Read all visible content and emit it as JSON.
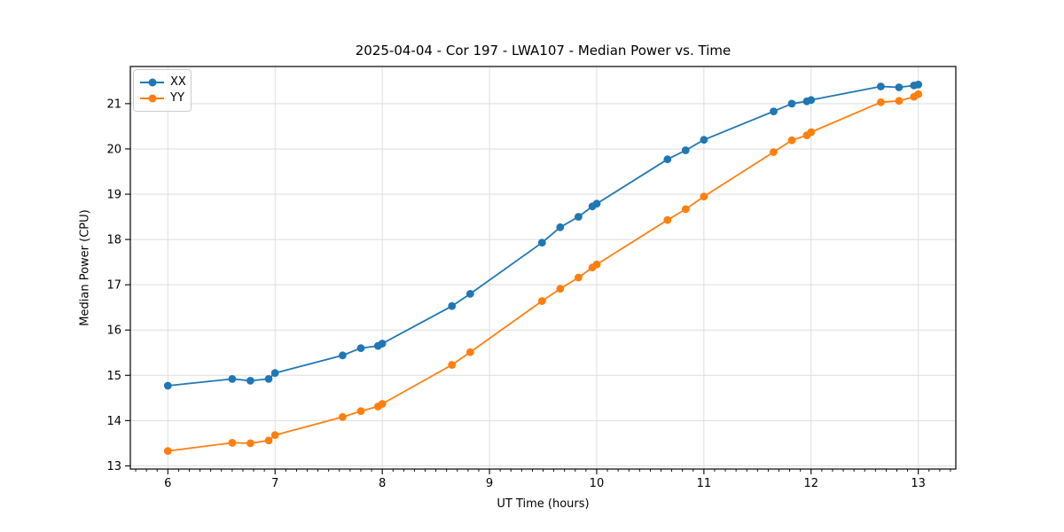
{
  "chart_data": {
    "type": "line",
    "title": "2025-04-04 - Cor 197 - LWA107 - Median Power vs. Time",
    "xlabel": "UT Time (hours)",
    "ylabel": "Median Power (CPU)",
    "xlim": [
      5.65,
      13.35
    ],
    "ylim": [
      12.93,
      21.82
    ],
    "x_ticks": [
      6,
      7,
      8,
      9,
      10,
      11,
      12,
      13
    ],
    "y_ticks": [
      13,
      14,
      15,
      16,
      17,
      18,
      19,
      20,
      21
    ],
    "x_minor_step": 0.1,
    "grid": true,
    "grid_color": "#dddddd",
    "spine_color": "#000000",
    "legend_position": "upper-left",
    "series": [
      {
        "name": "XX",
        "color": "#1f77b4",
        "points": [
          [
            6.0,
            14.77
          ],
          [
            6.6,
            14.92
          ],
          [
            6.77,
            14.88
          ],
          [
            6.94,
            14.92
          ],
          [
            7.0,
            15.05
          ],
          [
            7.63,
            15.44
          ],
          [
            7.8,
            15.6
          ],
          [
            7.96,
            15.65
          ],
          [
            8.0,
            15.7
          ],
          [
            8.65,
            16.53
          ],
          [
            8.82,
            16.8
          ],
          [
            9.49,
            17.93
          ],
          [
            9.66,
            18.27
          ],
          [
            9.83,
            18.5
          ],
          [
            9.96,
            18.73
          ],
          [
            10.0,
            18.79
          ],
          [
            10.66,
            19.77
          ],
          [
            10.83,
            19.97
          ],
          [
            11.0,
            20.2
          ],
          [
            11.65,
            20.83
          ],
          [
            11.82,
            21.0
          ],
          [
            11.96,
            21.05
          ],
          [
            12.0,
            21.08
          ],
          [
            12.65,
            21.38
          ],
          [
            12.82,
            21.36
          ],
          [
            12.96,
            21.4
          ],
          [
            13.0,
            21.42
          ]
        ]
      },
      {
        "name": "YY",
        "color": "#ff7f0e",
        "points": [
          [
            6.0,
            13.33
          ],
          [
            6.6,
            13.51
          ],
          [
            6.77,
            13.5
          ],
          [
            6.94,
            13.56
          ],
          [
            7.0,
            13.68
          ],
          [
            7.63,
            14.08
          ],
          [
            7.8,
            14.21
          ],
          [
            7.96,
            14.31
          ],
          [
            8.0,
            14.37
          ],
          [
            8.65,
            15.23
          ],
          [
            8.82,
            15.51
          ],
          [
            9.49,
            16.64
          ],
          [
            9.66,
            16.91
          ],
          [
            9.83,
            17.16
          ],
          [
            9.96,
            17.38
          ],
          [
            10.0,
            17.45
          ],
          [
            10.66,
            18.43
          ],
          [
            10.83,
            18.67
          ],
          [
            11.0,
            18.95
          ],
          [
            11.65,
            19.93
          ],
          [
            11.82,
            20.19
          ],
          [
            11.96,
            20.3
          ],
          [
            12.0,
            20.37
          ],
          [
            12.65,
            21.03
          ],
          [
            12.82,
            21.06
          ],
          [
            12.96,
            21.15
          ],
          [
            13.0,
            21.21
          ]
        ]
      }
    ]
  }
}
